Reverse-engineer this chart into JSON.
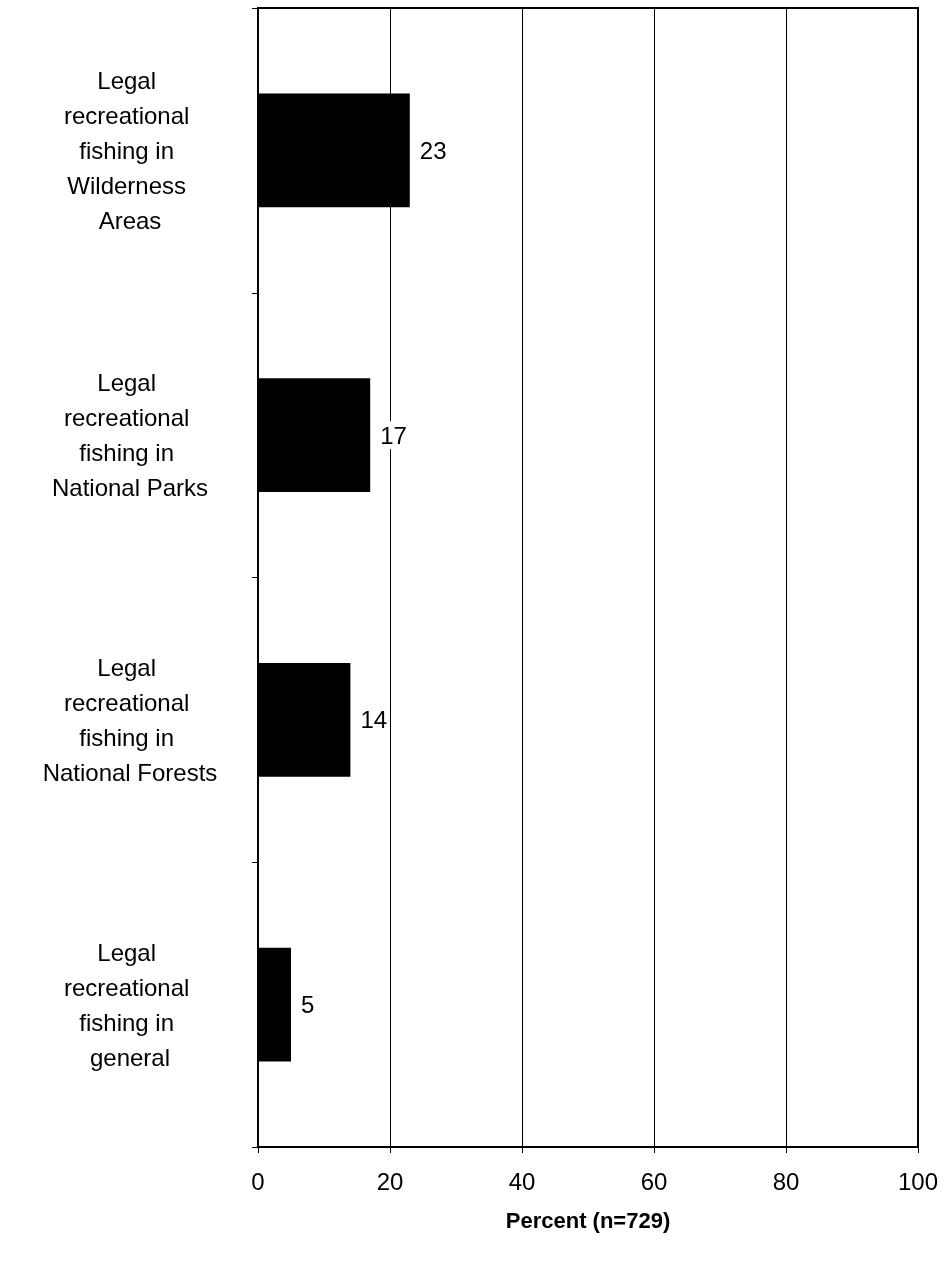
{
  "chart_data": {
    "type": "bar",
    "orientation": "horizontal",
    "xlabel": "Percent (n=729)",
    "categories": [
      "Legal recreational fishing in Wilderness Areas",
      "Legal recreational fishing in National Parks",
      "Legal recreational fishing in National Forests",
      "Legal recreational fishing in general"
    ],
    "values": [
      23,
      17,
      14,
      5
    ],
    "color": "#000000",
    "xlim": [
      0,
      100
    ],
    "xticks": [
      0,
      20,
      40,
      60,
      80,
      100
    ],
    "grid": "x",
    "data_labels": true
  }
}
